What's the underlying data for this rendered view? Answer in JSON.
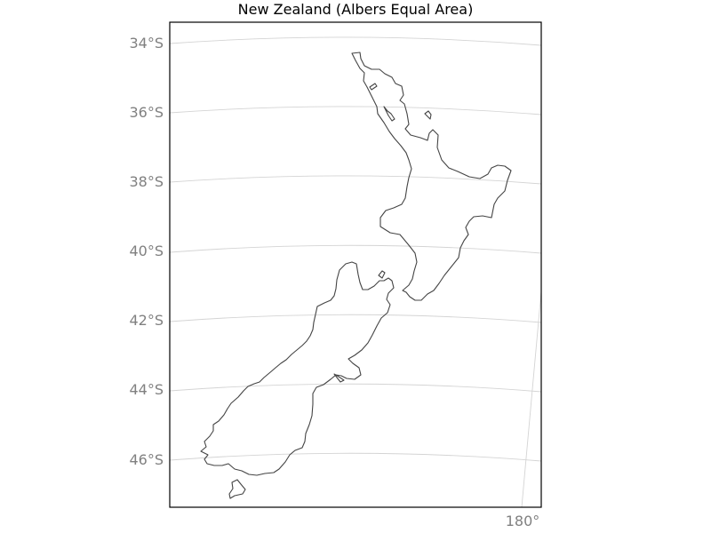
{
  "title": "New Zealand (Albers Equal Area)",
  "map": {
    "projection": "Albers Equal Area",
    "graticule": true,
    "latitude_labels": [
      "34°S",
      "36°S",
      "38°S",
      "40°S",
      "42°S",
      "44°S",
      "46°S"
    ],
    "longitude_labels": [
      "180°"
    ],
    "colors": {
      "coastline": "#444444",
      "graticule": "#d4d4d4",
      "labels": "#808080",
      "frame": "#000000"
    },
    "features": [
      "North Island",
      "South Island",
      "Stewart Island"
    ]
  }
}
